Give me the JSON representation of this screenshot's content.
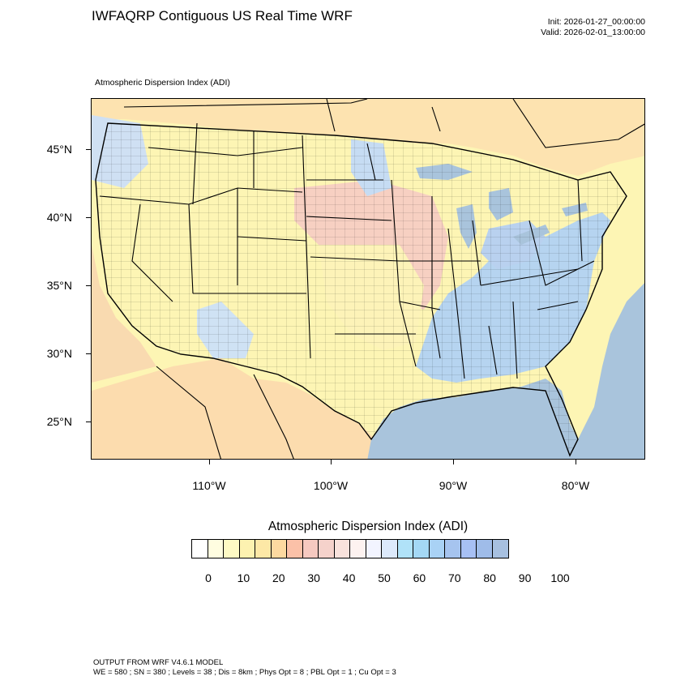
{
  "header": {
    "title": "IWFAQRP Contiguous US Real Time WRF",
    "init": "Init: 2026-01-27_00:00:00",
    "valid": "Valid: 2026-02-01_13:00:00",
    "subtitle": "Atmospheric Dispersion Index   (ADI)"
  },
  "map": {
    "lat_labels": [
      "45°N",
      "40°N",
      "35°N",
      "30°N",
      "25°N"
    ],
    "lon_labels": [
      "110°W",
      "100°W",
      "90°W",
      "80°W"
    ],
    "colors": {
      "ocean": "#a9c4dc",
      "low": "#fdf5b4",
      "mid": "#f6cbc0",
      "high": "#b6d4f0"
    }
  },
  "colorbar": {
    "title": "Atmospheric Dispersion Index  (ADI)",
    "labels": [
      "0",
      "10",
      "20",
      "30",
      "40",
      "50",
      "60",
      "70",
      "80",
      "90",
      "100"
    ],
    "colors": [
      "#ffffff",
      "#fffde0",
      "#fefac4",
      "#fdf2b0",
      "#fde8a6",
      "#fdd9a0",
      "#fbc1a8",
      "#f6c9c0",
      "#f5d2cb",
      "#f9e2dc",
      "#fdf2f0",
      "#f2f4ff",
      "#dce9fb",
      "#b0e2f8",
      "#a4d8f5",
      "#a9d2f5",
      "#a6c4ef",
      "#a7c0f4",
      "#9fbce9",
      "#a7c0e0"
    ]
  },
  "footer": {
    "line1": "OUTPUT FROM WRF V4.6.1 MODEL",
    "line2": "WE = 580 ; SN = 380 ; Levels = 38 ; Dis = 8km ; Phys Opt = 8 ; PBL Opt = 1 ; Cu Opt = 3"
  }
}
